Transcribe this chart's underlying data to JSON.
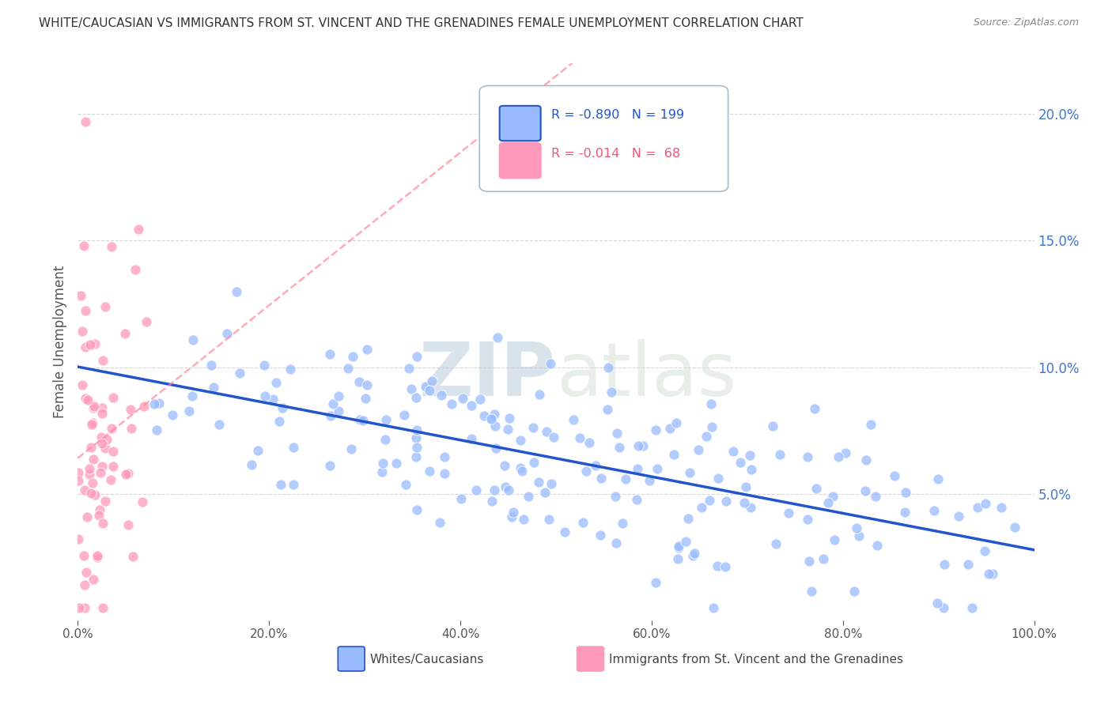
{
  "title": "WHITE/CAUCASIAN VS IMMIGRANTS FROM ST. VINCENT AND THE GRENADINES FEMALE UNEMPLOYMENT CORRELATION CHART",
  "source": "Source: ZipAtlas.com",
  "ylabel": "Female Unemployment",
  "legend_blue_label": "Whites/Caucasians",
  "legend_pink_label": "Immigrants from St. Vincent and the Grenadines",
  "blue_R": "-0.890",
  "blue_N": "199",
  "pink_R": "-0.014",
  "pink_N": "68",
  "blue_color": "#99BBFF",
  "pink_color": "#FF99BB",
  "blue_line_color": "#2255CC",
  "pink_line_color": "#FF8899",
  "watermark_zip": "ZIP",
  "watermark_atlas": "atlas",
  "xlim": [
    0,
    1
  ],
  "ylim": [
    0,
    0.22
  ],
  "right_yticks": [
    0.05,
    0.1,
    0.15,
    0.2
  ],
  "right_yticklabels": [
    "5.0%",
    "10.0%",
    "15.0%",
    "20.0%"
  ],
  "xticks": [
    0.0,
    0.2,
    0.4,
    0.6,
    0.8,
    1.0
  ],
  "xticklabels": [
    "0.0%",
    "20.0%",
    "40.0%",
    "60.0%",
    "80.0%",
    "100.0%"
  ],
  "background_color": "#FFFFFF",
  "grid_color": "#CCCCCC"
}
